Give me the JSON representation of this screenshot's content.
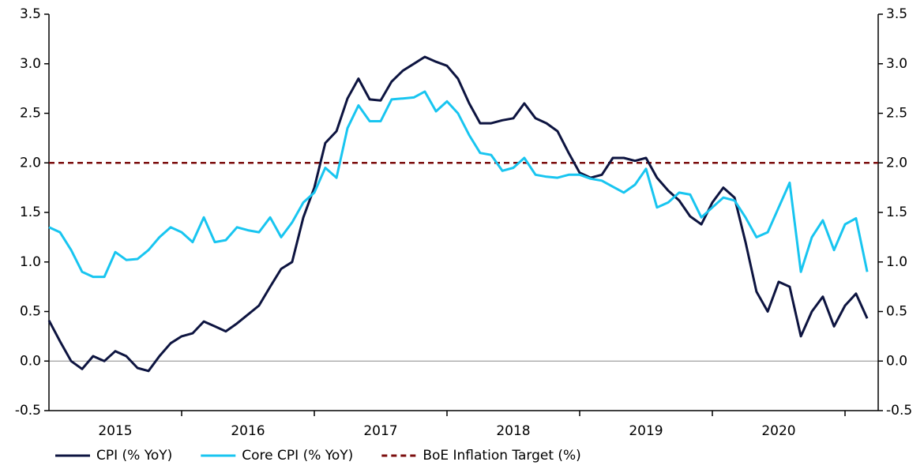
{
  "chart_data": {
    "type": "line",
    "x": [
      2015,
      2015.083,
      2015.167,
      2015.25,
      2015.333,
      2015.417,
      2015.5,
      2015.583,
      2015.667,
      2015.75,
      2015.833,
      2015.917,
      2016,
      2016.083,
      2016.167,
      2016.25,
      2016.333,
      2016.417,
      2016.5,
      2016.583,
      2016.667,
      2016.75,
      2016.833,
      2016.917,
      2017,
      2017.083,
      2017.167,
      2017.25,
      2017.333,
      2017.417,
      2017.5,
      2017.583,
      2017.667,
      2017.75,
      2017.833,
      2017.917,
      2018,
      2018.083,
      2018.167,
      2018.25,
      2018.333,
      2018.417,
      2018.5,
      2018.583,
      2018.667,
      2018.75,
      2018.833,
      2018.917,
      2019,
      2019.083,
      2019.167,
      2019.25,
      2019.333,
      2019.417,
      2019.5,
      2019.583,
      2019.667,
      2019.75,
      2019.833,
      2019.917,
      2020,
      2020.083,
      2020.167,
      2020.25,
      2020.333,
      2020.417,
      2020.5,
      2020.583,
      2020.667,
      2020.75,
      2020.833,
      2020.917,
      2021,
      2021.083,
      2021.167
    ],
    "series": [
      {
        "name": "CPI (% YoY)",
        "color": "#0d1440",
        "values": [
          0.41,
          0.2,
          0.0,
          -0.08,
          0.05,
          0.0,
          0.1,
          0.05,
          -0.07,
          -0.1,
          0.05,
          0.18,
          0.25,
          0.28,
          0.4,
          0.35,
          0.3,
          0.38,
          0.47,
          0.56,
          0.75,
          0.93,
          1.0,
          1.45,
          1.75,
          2.2,
          2.32,
          2.65,
          2.85,
          2.64,
          2.63,
          2.82,
          2.93,
          3.0,
          3.07,
          3.02,
          2.98,
          2.85,
          2.6,
          2.4,
          2.4,
          2.43,
          2.45,
          2.6,
          2.45,
          2.4,
          2.32,
          2.1,
          1.9,
          1.85,
          1.88,
          2.05,
          2.05,
          2.02,
          2.05,
          1.85,
          1.72,
          1.62,
          1.46,
          1.38,
          1.6,
          1.75,
          1.65,
          1.2,
          0.7,
          0.5,
          0.8,
          0.75,
          0.25,
          0.5,
          0.65,
          0.35,
          0.56,
          0.68,
          0.43
        ]
      },
      {
        "name": "Core CPI (% YoY)",
        "color": "#18c5f0",
        "values": [
          1.35,
          1.3,
          1.12,
          0.9,
          0.85,
          0.85,
          1.1,
          1.02,
          1.03,
          1.12,
          1.25,
          1.35,
          1.3,
          1.2,
          1.45,
          1.2,
          1.22,
          1.35,
          1.32,
          1.3,
          1.45,
          1.25,
          1.4,
          1.6,
          1.7,
          1.95,
          1.85,
          2.35,
          2.58,
          2.42,
          2.42,
          2.64,
          2.65,
          2.66,
          2.72,
          2.52,
          2.62,
          2.5,
          2.28,
          2.1,
          2.08,
          1.92,
          1.95,
          2.05,
          1.88,
          1.86,
          1.85,
          1.88,
          1.88,
          1.84,
          1.82,
          1.76,
          1.7,
          1.78,
          1.94,
          1.55,
          1.6,
          1.7,
          1.68,
          1.45,
          1.55,
          1.65,
          1.62,
          1.45,
          1.25,
          1.3,
          1.55,
          1.8,
          0.9,
          1.25,
          1.42,
          1.12,
          1.38,
          1.44,
          0.9
        ]
      }
    ],
    "target": {
      "name": "BoE Inflation Target (%)",
      "value": 2.0,
      "color": "#7b0d0d"
    },
    "xlim": [
      2015,
      2021.25
    ],
    "xticks": [
      {
        "value": 2015.5,
        "label": "2015"
      },
      {
        "value": 2016.5,
        "label": "2016"
      },
      {
        "value": 2017.5,
        "label": "2017"
      },
      {
        "value": 2018.5,
        "label": "2018"
      },
      {
        "value": 2019.5,
        "label": "2019"
      },
      {
        "value": 2020.5,
        "label": "2020"
      }
    ],
    "ylim": [
      -0.5,
      3.5
    ],
    "yticks": [
      -0.5,
      {
        "value": 0,
        "label": "0.0"
      },
      0.5,
      {
        "value": 1,
        "label": "1.0"
      },
      1.5,
      {
        "value": 2,
        "label": "2.0"
      },
      2.5,
      {
        "value": 3,
        "label": "3.0"
      },
      3.5
    ],
    "y2lim": [
      -0.5,
      3.5
    ],
    "y2ticks": [
      -0.5,
      {
        "value": 0,
        "label": "0.0"
      },
      0.5,
      {
        "value": 1,
        "label": "1.0"
      },
      1.5,
      {
        "value": 2,
        "label": "2.0"
      },
      2.5,
      {
        "value": 3,
        "label": "3.0"
      },
      3.5
    ]
  }
}
